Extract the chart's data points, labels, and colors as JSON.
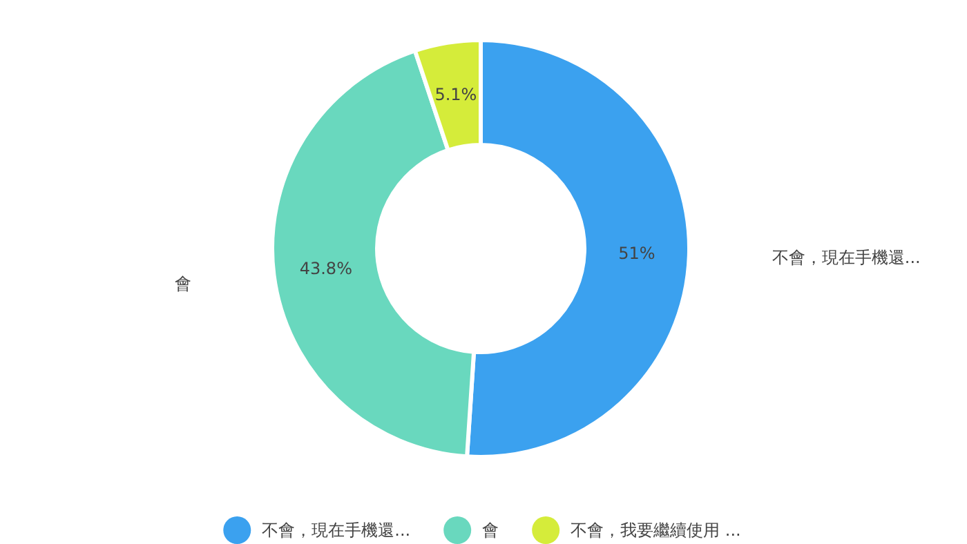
{
  "chart_data": {
    "type": "donut",
    "categories": [
      "不會，現在手機還...",
      "會",
      "不會，我要繼續使用 ..."
    ],
    "values": [
      51,
      43.8,
      5.1
    ],
    "colors": [
      "#3ba1ef",
      "#69d8be",
      "#d5ec3a"
    ],
    "value_labels": [
      "51%",
      "43.8%",
      "5.1%"
    ],
    "legend": "bottom"
  }
}
